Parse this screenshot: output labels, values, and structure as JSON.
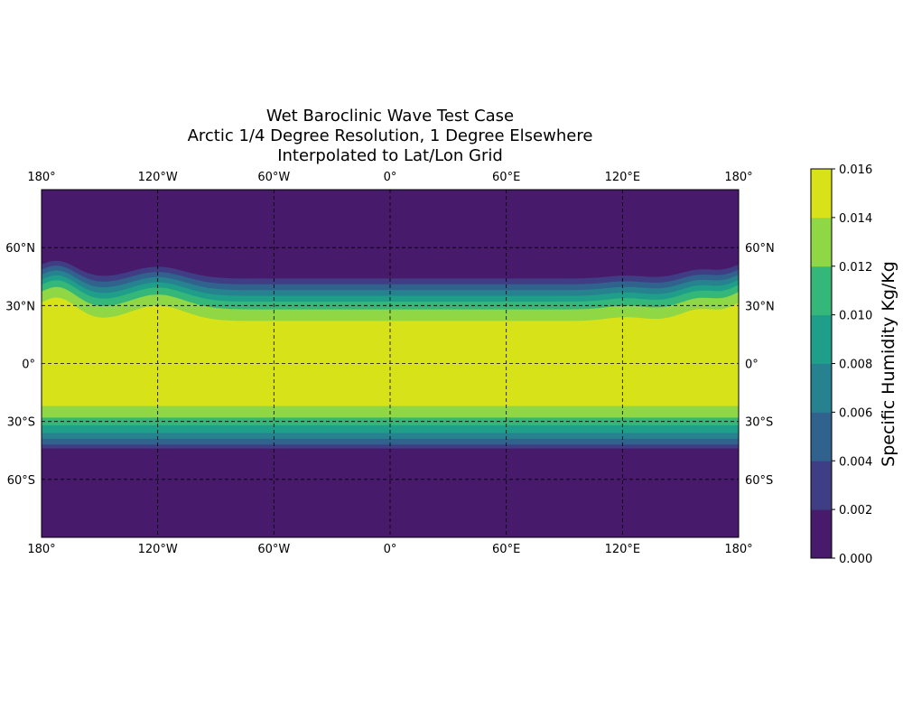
{
  "chart_data": {
    "type": "heatmap",
    "title": "Wet Baroclinic Wave Test Case\nArctic 1/4 Degree Resolution, 1 Degree Elsewhere\nInterpolated to Lat/Lon Grid",
    "title_lines": [
      "Wet Baroclinic Wave Test Case",
      "Arctic 1/4 Degree Resolution, 1 Degree Elsewhere",
      "Interpolated to Lat/Lon Grid"
    ],
    "xlabel": "",
    "ylabel": "",
    "xlim": [
      -180,
      180
    ],
    "ylim": [
      -90,
      90
    ],
    "grid": true,
    "x_ticks": [
      {
        "value": -180,
        "label": "180°"
      },
      {
        "value": -120,
        "label": "120°W"
      },
      {
        "value": -60,
        "label": "60°W"
      },
      {
        "value": 0,
        "label": "0°"
      },
      {
        "value": 60,
        "label": "60°E"
      },
      {
        "value": 120,
        "label": "120°E"
      },
      {
        "value": 180,
        "label": "180°"
      }
    ],
    "y_ticks": [
      {
        "value": 60,
        "label": "60°N"
      },
      {
        "value": 30,
        "label": "30°N"
      },
      {
        "value": 0,
        "label": "0°"
      },
      {
        "value": -30,
        "label": "30°S"
      },
      {
        "value": -60,
        "label": "60°S"
      }
    ],
    "colorbar": {
      "label": "Specific Humidity Kg/Kg",
      "levels": [
        0.0,
        0.002,
        0.004,
        0.006,
        0.008,
        0.01,
        0.012,
        0.014,
        0.016
      ],
      "tick_labels": [
        "0.000",
        "0.002",
        "0.004",
        "0.006",
        "0.008",
        "0.010",
        "0.012",
        "0.014",
        "0.016"
      ],
      "colors": [
        "#481a6c",
        "#3f3d84",
        "#30628d",
        "#26828e",
        "#1f9e89",
        "#35b779",
        "#8fd744",
        "#d8e219"
      ]
    },
    "south_band_edges_lat": [
      -22,
      -28,
      -32,
      -36,
      -39,
      -42,
      -44,
      -48
    ],
    "north_band_edges_lat": [
      22,
      28,
      32,
      35,
      38,
      41,
      44,
      48
    ],
    "wave_perturbations": [
      {
        "center_lon": -120,
        "amplitude_deg": 8,
        "width_deg": 14
      },
      {
        "center_lon": -172,
        "amplitude_deg": 12,
        "width_deg": 10
      },
      {
        "center_lon": 160,
        "amplitude_deg": 6,
        "width_deg": 10
      },
      {
        "center_lon": 122,
        "amplitude_deg": 2,
        "width_deg": 10
      }
    ]
  }
}
